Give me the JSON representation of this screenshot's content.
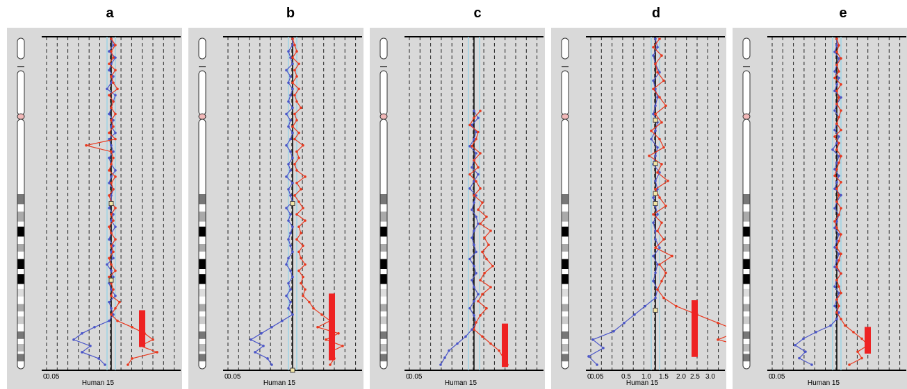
{
  "page": {
    "background": "#ffffff"
  },
  "colors": {
    "series_blue": "#4a55c8",
    "series_red": "#e8381e",
    "bar": "#ee2222",
    "panel_bg": "#d9d9d9",
    "centerline": "#000000",
    "band": "#8fd3e8"
  },
  "chart_data": [
    {
      "type": "line",
      "title": "a",
      "xlabel": "Human 15",
      "xticks": [
        "0",
        "0.05"
      ],
      "series": [
        {
          "values": [
            1.0,
            1.01,
            0.99,
            1.02,
            1.0,
            0.99,
            1.01,
            1.0,
            0.98,
            1.02,
            1.01,
            1.0,
            0.99,
            1.01,
            1.0,
            1.02,
            0.99,
            1.0,
            1.01,
            0.99,
            1.0,
            1.02,
            1.0,
            0.99,
            1.01,
            1.0,
            1.0,
            0.99,
            1.01,
            1.0,
            1.02,
            1.0,
            0.99,
            1.01,
            1.0,
            1.01,
            0.98,
            1.0,
            1.01,
            0.99,
            1.0,
            1.02,
            0.99,
            1.0,
            1.01,
            0.99,
            0.92,
            0.86,
            0.82,
            0.9,
            0.86,
            0.94,
            0.97
          ]
        },
        {
          "values": [
            1.0,
            1.02,
            1.0,
            1.01,
            0.99,
            1.02,
            1.0,
            1.01,
            1.03,
            0.99,
            1.01,
            1.0,
            1.02,
            1.0,
            1.01,
            0.99,
            1.02,
            0.88,
            1.0,
            1.01,
            1.0,
            0.99,
            1.02,
            1.0,
            1.01,
            0.99,
            1.0,
            1.02,
            1.0,
            1.01,
            0.99,
            1.0,
            1.02,
            1.0,
            1.01,
            0.99,
            1.0,
            1.02,
            0.99,
            1.0,
            1.01,
            1.0,
            1.04,
            1.02,
            1.0,
            1.03,
            1.1,
            1.16,
            1.2,
            1.14,
            1.22,
            1.1,
            1.08
          ]
        }
      ],
      "marker": [
        0.5,
        0.27
      ],
      "bar": {
        "top": 0.82,
        "height": 0.11
      }
    },
    {
      "type": "line",
      "title": "b",
      "xlabel": "Human 15",
      "xticks": [
        "0",
        "0.05"
      ],
      "series": [
        {
          "values": [
            1.0,
            1.0,
            0.98,
            0.99,
            1.0,
            0.97,
            0.99,
            0.98,
            1.0,
            0.99,
            0.98,
            1.0,
            0.97,
            0.99,
            0.98,
            1.0,
            0.99,
            0.97,
            0.99,
            1.0,
            0.98,
            0.99,
            0.97,
            1.0,
            0.98,
            0.99,
            1.0,
            0.97,
            0.99,
            0.98,
            1.0,
            0.99,
            0.98,
            0.99,
            1.0,
            0.98,
            0.97,
            0.99,
            1.0,
            0.98,
            0.99,
            0.97,
            0.99,
            0.98,
            1.0,
            0.95,
            0.9,
            0.85,
            0.8,
            0.86,
            0.82,
            0.88,
            0.9
          ]
        },
        {
          "values": [
            1.0,
            1.01,
            1.02,
            1.0,
            1.03,
            1.01,
            1.02,
            1.0,
            1.03,
            1.01,
            1.02,
            1.04,
            1.01,
            1.02,
            1.0,
            1.03,
            1.01,
            1.05,
            1.02,
            1.03,
            1.01,
            1.02,
            1.06,
            1.02,
            1.04,
            1.01,
            1.03,
            1.05,
            1.02,
            1.06,
            1.03,
            1.04,
            1.02,
            1.05,
            1.03,
            1.04,
            1.06,
            1.03,
            1.05,
            1.04,
            1.06,
            1.05,
            1.08,
            1.1,
            1.14,
            1.18,
            1.12,
            1.22,
            1.16,
            1.24,
            1.18,
            1.2,
            1.18
          ]
        }
      ],
      "marker": [
        0.5,
        0.0
      ],
      "bar": {
        "top": 0.77,
        "height": 0.2
      }
    },
    {
      "type": "line",
      "title": "c",
      "xlabel": "Human 15",
      "xticks": [
        "0",
        "0.05"
      ],
      "series": [
        {
          "values": [
            1.0,
            1.02,
            0.99,
            1.01,
            1.0,
            0.98,
            1.01,
            1.0,
            0.99,
            1.02,
            1.0,
            0.98,
            1.01,
            1.0,
            0.99,
            1.01,
            1.02,
            1.0,
            0.99,
            1.0,
            1.01,
            0.98,
            1.0,
            1.01,
            0.99,
            1.0,
            1.02,
            1.0,
            0.98,
            1.0,
            1.01,
            0.99,
            0.96,
            0.92,
            0.88,
            0.86,
            0.84
          ]
        },
        {
          "values": [
            1.03,
            1.0,
            0.98,
            1.02,
            1.01,
            0.99,
            1.03,
            1.0,
            1.02,
            0.98,
            1.01,
            1.03,
            1.0,
            1.04,
            1.02,
            1.06,
            1.03,
            1.08,
            1.05,
            1.07,
            1.04,
            1.06,
            1.09,
            1.05,
            1.03,
            1.08,
            1.04,
            1.02,
            1.06,
            1.03,
            1.01,
            1.0,
            1.04,
            1.08,
            1.12,
            1.14,
            1.16
          ]
        }
      ],
      "bar": {
        "top": 0.86,
        "height": 0.13
      }
    },
    {
      "type": "line",
      "title": "d",
      "xlabel": "Human 15",
      "xticks": [
        "0",
        "0.05",
        "0.5",
        "1.0",
        "1.5",
        "2.0",
        "2.5",
        "3.0"
      ],
      "series": [
        {
          "values": [
            1.0,
            1.01,
            0.99,
            1.0,
            1.02,
            0.99,
            1.0,
            1.01,
            1.0,
            0.99,
            1.01,
            1.0,
            0.98,
            1.01,
            1.0,
            0.99,
            1.02,
            1.0,
            1.01,
            0.99,
            1.0,
            1.01,
            0.99,
            1.0,
            1.0,
            1.02,
            0.99,
            1.01,
            1.0,
            0.99,
            1.01,
            1.0,
            0.95,
            0.9,
            0.85,
            0.8,
            0.7,
            0.75,
            0.68,
            0.72
          ]
        },
        {
          "values": [
            1.02,
            0.99,
            1.03,
            1.0,
            1.01,
            1.04,
            0.99,
            1.02,
            1.05,
            1.0,
            1.03,
            0.98,
            1.02,
            1.04,
            0.97,
            1.03,
            1.01,
            1.06,
            1.0,
            1.02,
            1.05,
            0.99,
            1.03,
            1.01,
            1.04,
            1.0,
            1.08,
            1.02,
            1.05,
            1.03,
            1.01,
            1.04,
            1.1,
            1.2,
            1.3,
            1.4,
            1.3,
            1.45,
            1.35,
            1.4
          ]
        }
      ],
      "marker": [
        0.5,
        0.75,
        0.62,
        0.53,
        0.18
      ],
      "bar": {
        "top": 0.79,
        "height": 0.17
      }
    },
    {
      "type": "line",
      "title": "e",
      "xlabel": "Human 15",
      "xticks": [
        "0",
        "0.05"
      ],
      "series": [
        {
          "values": [
            1.0,
            1.0,
            0.99,
            1.01,
            1.0,
            0.99,
            1.01,
            1.0,
            0.99,
            1.02,
            1.0,
            0.99,
            1.01,
            1.0,
            0.99,
            1.01,
            1.0,
            0.98,
            1.01,
            1.0,
            0.99,
            1.01,
            1.0,
            0.99,
            1.02,
            1.0,
            0.99,
            1.01,
            1.0,
            0.99,
            1.01,
            1.0,
            0.99,
            1.01,
            1.0,
            0.99,
            1.02,
            1.0,
            0.99,
            1.01,
            1.0,
            0.99,
            1.01,
            1.0,
            0.97,
            0.9,
            0.84,
            0.8,
            0.85,
            0.82,
            0.88
          ]
        },
        {
          "values": [
            1.0,
            1.01,
            1.0,
            1.02,
            1.0,
            1.01,
            0.99,
            1.02,
            1.0,
            1.01,
            1.0,
            1.02,
            1.01,
            1.0,
            1.02,
            0.99,
            1.01,
            1.0,
            1.02,
            1.01,
            1.0,
            0.99,
            1.02,
            1.0,
            1.01,
            1.0,
            1.02,
            1.01,
            0.99,
            1.0,
            1.02,
            1.01,
            1.0,
            1.02,
            1.01,
            1.0,
            1.02,
            1.0,
            1.01,
            1.02,
            1.0,
            1.01,
            1.0,
            1.02,
            1.04,
            1.08,
            1.12,
            1.15,
            1.1,
            1.12,
            1.06
          ]
        }
      ],
      "bar": {
        "top": 0.87,
        "height": 0.08
      }
    }
  ]
}
